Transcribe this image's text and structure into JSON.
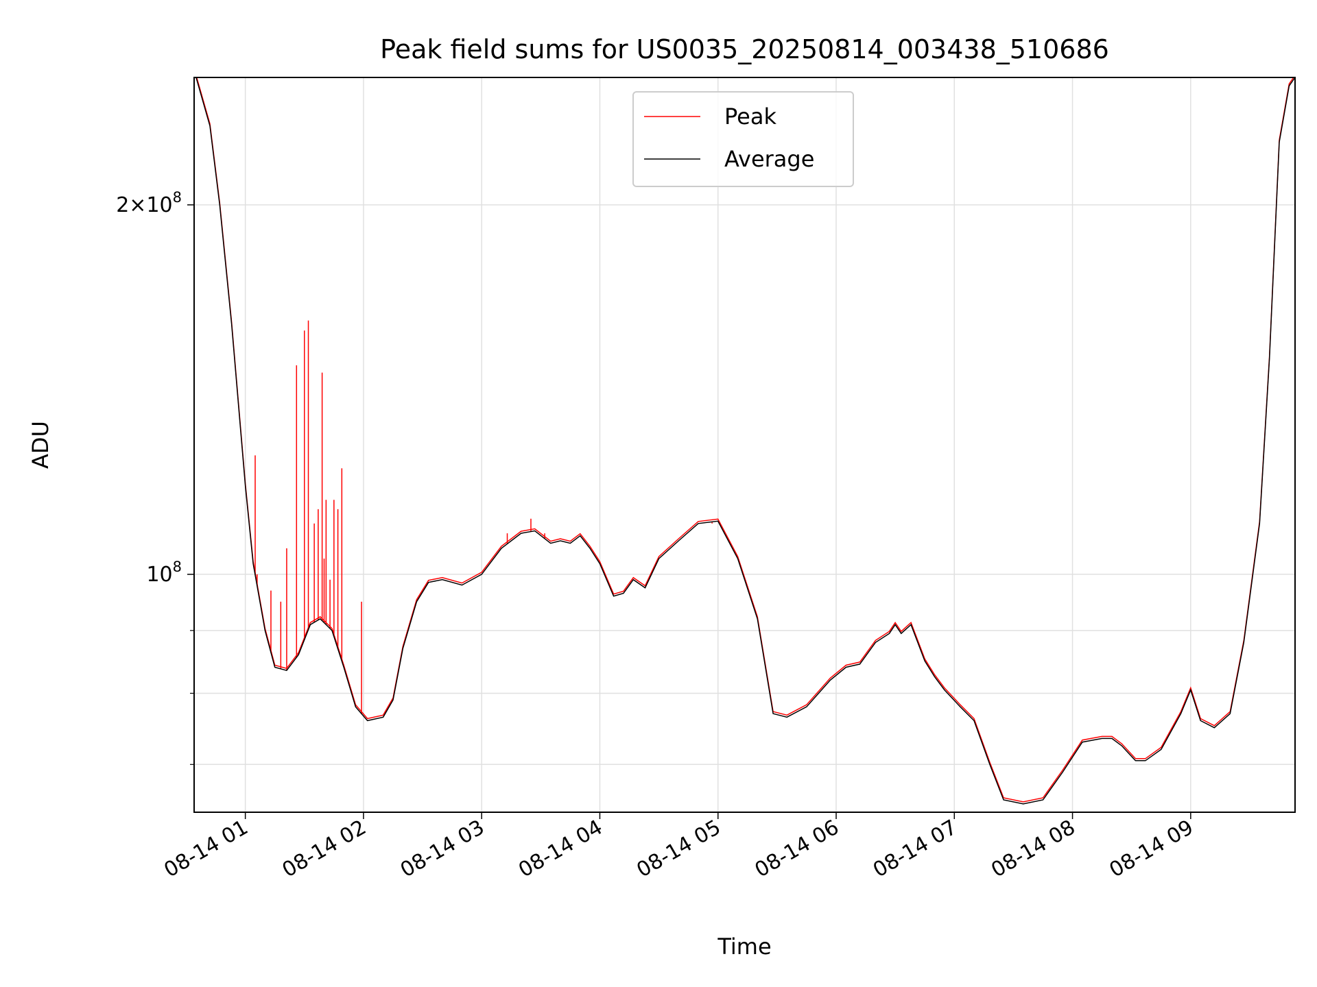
{
  "chart_data": {
    "type": "line",
    "title": "Peak field sums for US0035_20250814_003438_510686",
    "xlabel": "Time",
    "ylabel": "ADU",
    "yscale": "log",
    "xlim": [
      "2025-08-14T00:34",
      "2025-08-14T09:53"
    ],
    "ylim": [
      64000000,
      254000000
    ],
    "grid": true,
    "legend_position": "top-center",
    "x_tick_labels": [
      "08-14 01",
      "08-14 02",
      "08-14 03",
      "08-14 04",
      "08-14 05",
      "08-14 06",
      "08-14 07",
      "08-14 08",
      "08-14 09"
    ],
    "x_tick_times": [
      "2025-08-14T01:00",
      "2025-08-14T02:00",
      "2025-08-14T03:00",
      "2025-08-14T04:00",
      "2025-08-14T05:00",
      "2025-08-14T06:00",
      "2025-08-14T07:00",
      "2025-08-14T08:00",
      "2025-08-14T09:00"
    ],
    "y_major_ticks": [
      {
        "value": 100000000,
        "label": "10",
        "exp": "8"
      },
      {
        "value": 200000000,
        "label": "2×10",
        "exp": "8"
      }
    ],
    "y_minor_ticks": [
      70000000,
      80000000,
      90000000
    ],
    "average": {
      "x": [
        "2025-08-14T00:35",
        "2025-08-14T00:42",
        "2025-08-14T00:47",
        "2025-08-14T00:53",
        "2025-08-14T01:00",
        "2025-08-14T01:04",
        "2025-08-14T01:10",
        "2025-08-14T01:15",
        "2025-08-14T01:21",
        "2025-08-14T01:27",
        "2025-08-14T01:33",
        "2025-08-14T01:38",
        "2025-08-14T01:44",
        "2025-08-14T01:50",
        "2025-08-14T01:56",
        "2025-08-14T02:02",
        "2025-08-14T02:10",
        "2025-08-14T02:15",
        "2025-08-14T02:20",
        "2025-08-14T02:27",
        "2025-08-14T02:33",
        "2025-08-14T02:40",
        "2025-08-14T02:50",
        "2025-08-14T03:00",
        "2025-08-14T03:10",
        "2025-08-14T03:20",
        "2025-08-14T03:27",
        "2025-08-14T03:35",
        "2025-08-14T03:40",
        "2025-08-14T03:45",
        "2025-08-14T03:50",
        "2025-08-14T03:55",
        "2025-08-14T04:00",
        "2025-08-14T04:07",
        "2025-08-14T04:12",
        "2025-08-14T04:17",
        "2025-08-14T04:23",
        "2025-08-14T04:30",
        "2025-08-14T04:40",
        "2025-08-14T04:50",
        "2025-08-14T05:00",
        "2025-08-14T05:10",
        "2025-08-14T05:20",
        "2025-08-14T05:28",
        "2025-08-14T05:35",
        "2025-08-14T05:45",
        "2025-08-14T05:57",
        "2025-08-14T06:05",
        "2025-08-14T06:12",
        "2025-08-14T06:20",
        "2025-08-14T06:27",
        "2025-08-14T06:30",
        "2025-08-14T06:33",
        "2025-08-14T06:38",
        "2025-08-14T06:45",
        "2025-08-14T06:50",
        "2025-08-14T06:55",
        "2025-08-14T07:03",
        "2025-08-14T07:10",
        "2025-08-14T07:18",
        "2025-08-14T07:25",
        "2025-08-14T07:35",
        "2025-08-14T07:45",
        "2025-08-14T07:55",
        "2025-08-14T08:05",
        "2025-08-14T08:15",
        "2025-08-14T08:20",
        "2025-08-14T08:25",
        "2025-08-14T08:32",
        "2025-08-14T08:37",
        "2025-08-14T08:45",
        "2025-08-14T08:55",
        "2025-08-14T09:00",
        "2025-08-14T09:05",
        "2025-08-14T09:12",
        "2025-08-14T09:20",
        "2025-08-14T09:27",
        "2025-08-14T09:35",
        "2025-08-14T09:40",
        "2025-08-14T09:45",
        "2025-08-14T09:50",
        "2025-08-14T09:53"
      ],
      "y": [
        254000000,
        232000000,
        200000000,
        160000000,
        118000000,
        102000000,
        90000000,
        84000000,
        83500000,
        86000000,
        91000000,
        92000000,
        90000000,
        84000000,
        78000000,
        76000000,
        76500000,
        79000000,
        87000000,
        95000000,
        98500000,
        99000000,
        98000000,
        100000000,
        105000000,
        108000000,
        108500000,
        106000000,
        106500000,
        106000000,
        107500000,
        105000000,
        102000000,
        96000000,
        96500000,
        99000000,
        97500000,
        103000000,
        106500000,
        110000000,
        110500000,
        103000000,
        92000000,
        77000000,
        76500000,
        78000000,
        82000000,
        84000000,
        84500000,
        88000000,
        89500000,
        91000000,
        89500000,
        91000000,
        85000000,
        82500000,
        80500000,
        78000000,
        76000000,
        70000000,
        65500000,
        65000000,
        65500000,
        69000000,
        73000000,
        73500000,
        73500000,
        72500000,
        70500000,
        70500000,
        72000000,
        77000000,
        80500000,
        76000000,
        75000000,
        77000000,
        88000000,
        110000000,
        150000000,
        225000000,
        250000000,
        254000000
      ]
    },
    "peak": {
      "spikes": [
        {
          "x": "2025-08-14T01:05",
          "y": 125000000
        },
        {
          "x": "2025-08-14T01:06",
          "y": 100000000
        },
        {
          "x": "2025-08-14T01:13",
          "y": 97000000
        },
        {
          "x": "2025-08-14T01:18",
          "y": 95000000
        },
        {
          "x": "2025-08-14T01:21",
          "y": 105000000
        },
        {
          "x": "2025-08-14T01:26",
          "y": 148000000
        },
        {
          "x": "2025-08-14T01:30",
          "y": 158000000
        },
        {
          "x": "2025-08-14T01:32",
          "y": 161000000
        },
        {
          "x": "2025-08-14T01:35",
          "y": 110000000
        },
        {
          "x": "2025-08-14T01:37",
          "y": 113000000
        },
        {
          "x": "2025-08-14T01:39",
          "y": 146000000
        },
        {
          "x": "2025-08-14T01:40",
          "y": 103000000
        },
        {
          "x": "2025-08-14T01:41",
          "y": 115000000
        },
        {
          "x": "2025-08-14T01:43",
          "y": 99000000
        },
        {
          "x": "2025-08-14T01:45",
          "y": 115000000
        },
        {
          "x": "2025-08-14T01:47",
          "y": 113000000
        },
        {
          "x": "2025-08-14T01:49",
          "y": 122000000
        },
        {
          "x": "2025-08-14T01:59",
          "y": 95000000
        },
        {
          "x": "2025-08-14T03:13",
          "y": 108000000
        },
        {
          "x": "2025-08-14T03:25",
          "y": 111000000
        },
        {
          "x": "2025-08-14T03:32",
          "y": 108000000
        },
        {
          "x": "2025-08-14T04:57",
          "y": 110000000
        }
      ]
    },
    "legend": [
      {
        "name": "Peak",
        "color": "#ff0000"
      },
      {
        "name": "Average",
        "color": "#000000"
      }
    ]
  }
}
